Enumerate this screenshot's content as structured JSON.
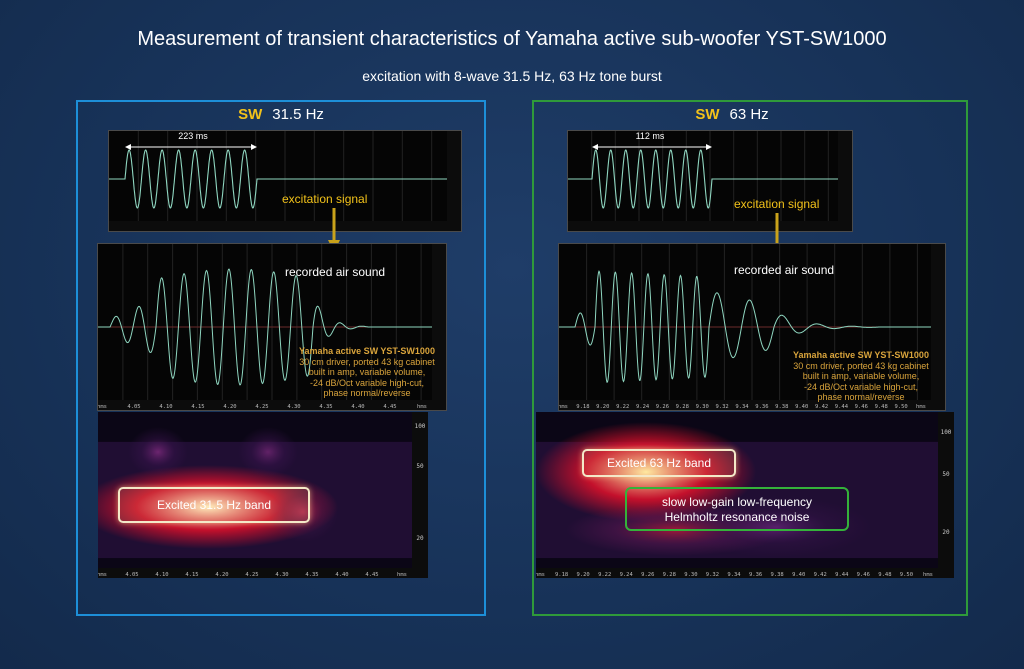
{
  "title": "Measurement of transient characteristics of Yamaha active sub-woofer YST-SW1000",
  "subtitle": "excitation with 8-wave 31.5 Hz, 63 Hz tone burst",
  "colors": {
    "left_frame": "#1d8fd8",
    "right_frame": "#2f9a3a",
    "label_accent": "#f2c21a",
    "wave": "#8fd6c0",
    "note": "#d9a43c"
  },
  "panels": [
    {
      "label_prefix": "SW",
      "label_freq": "31.5 Hz",
      "burst_duration": "223 ms",
      "excitation_label": "excitation signal",
      "recorded_label": "recorded air sound",
      "note_title": "Yamaha active SW YST-SW1000",
      "note_lines": [
        "30 cm driver, ported 43 kg cabinet",
        "built in amp, variable volume,",
        "-24 dB/Oct variable high-cut,",
        "phase normal/reverse"
      ],
      "band_label": "Excited 31.5 Hz band",
      "time_ticks": [
        "hms",
        "4.05",
        "4.10",
        "4.15",
        "4.20",
        "4.25",
        "4.30",
        "4.35",
        "4.40",
        "4.45",
        "hms"
      ],
      "freq_ticks": [
        "100",
        "50",
        "20"
      ]
    },
    {
      "label_prefix": "SW",
      "label_freq": "63 Hz",
      "burst_duration": "112 ms",
      "excitation_label": "excitation signal",
      "recorded_label": "recorded air sound",
      "note_title": "Yamaha active SW YST-SW1000",
      "note_lines": [
        "30 cm driver, ported 43 kg cabinet",
        "built in amp, variable volume,",
        "-24 dB/Oct variable high-cut,",
        "phase normal/reverse"
      ],
      "band_label": "Excited 63 Hz band",
      "resonance_label_1": "slow low-gain low-frequency",
      "resonance_label_2": "Helmholtz resonance noise",
      "time_ticks": [
        "hms",
        "9.18",
        "9.20",
        "9.22",
        "9.24",
        "9.26",
        "9.28",
        "9.30",
        "9.32",
        "9.34",
        "9.36",
        "9.38",
        "9.40",
        "9.42",
        "9.44",
        "9.46",
        "9.48",
        "9.50",
        "hms"
      ],
      "freq_ticks": [
        "100",
        "50",
        "20"
      ]
    }
  ]
}
